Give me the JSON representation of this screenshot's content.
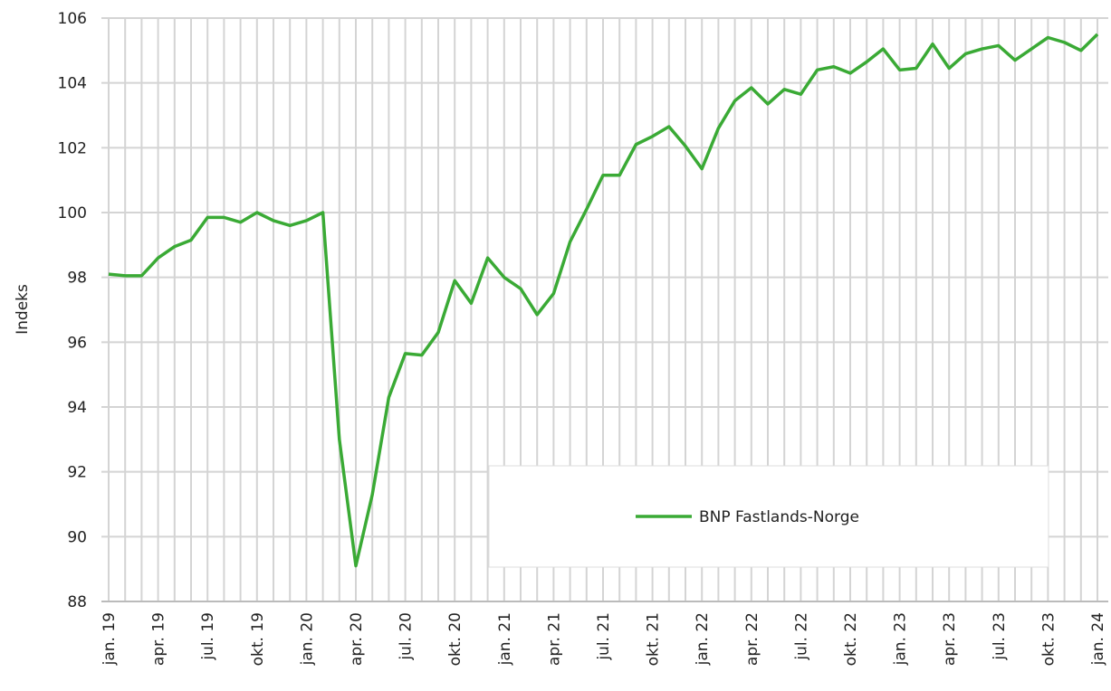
{
  "chart_data": {
    "type": "line",
    "y_label": "Indeks",
    "categories": [
      "jan. 19",
      null,
      null,
      "apr. 19",
      null,
      null,
      "jul. 19",
      null,
      null,
      "okt. 19",
      null,
      null,
      "jan. 20",
      null,
      null,
      "apr. 20",
      null,
      null,
      "jul. 20",
      null,
      null,
      "okt. 20",
      null,
      null,
      "jan. 21",
      null,
      null,
      "apr. 21",
      null,
      null,
      "jul. 21",
      null,
      null,
      "okt. 21",
      null,
      null,
      "jan. 22",
      null,
      null,
      "apr. 22",
      null,
      null,
      "jul. 22",
      null,
      null,
      "okt. 22",
      null,
      null,
      "jan. 23",
      null,
      null,
      "apr. 23",
      null,
      null,
      "jul. 23",
      null,
      null,
      "okt. 23",
      null,
      null,
      "jan. 24"
    ],
    "series": [
      {
        "name": "BNP Fastlands-Norge",
        "color": "#3aaa35",
        "values": [
          98.1,
          98.05,
          98.05,
          98.6,
          98.95,
          99.15,
          99.85,
          99.85,
          99.7,
          100.0,
          99.75,
          99.6,
          99.75,
          100.0,
          93.0,
          89.1,
          91.3,
          94.3,
          95.65,
          95.6,
          96.3,
          97.9,
          97.2,
          98.6,
          98.0,
          97.65,
          96.85,
          97.5,
          99.1,
          100.1,
          101.15,
          101.15,
          102.1,
          102.35,
          102.65,
          102.05,
          101.35,
          102.6,
          103.45,
          103.85,
          103.35,
          103.8,
          103.65,
          104.4,
          104.5,
          104.3,
          104.65,
          105.05,
          104.4,
          104.45,
          105.2,
          104.45,
          104.9,
          105.05,
          105.15,
          104.7,
          105.05,
          105.4,
          105.25,
          105.0,
          105.5
        ]
      }
    ],
    "ylim": [
      88,
      106
    ],
    "yticks": [
      88,
      90,
      92,
      94,
      96,
      98,
      100,
      102,
      104,
      106
    ],
    "grid": true
  }
}
